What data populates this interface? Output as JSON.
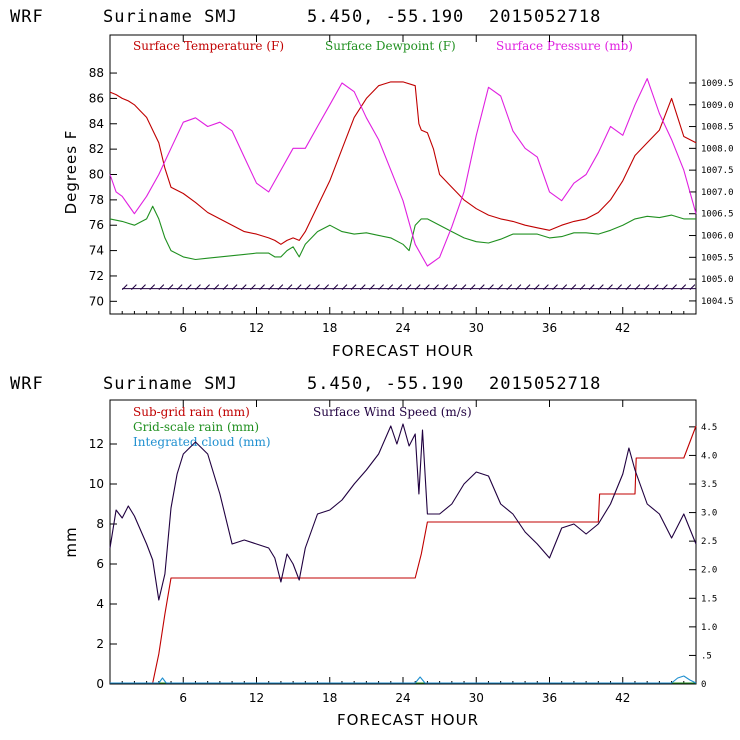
{
  "chart_data": [
    {
      "type": "line",
      "header": {
        "model": "WRF",
        "site": "Suriname SMJ",
        "coords": "5.450, -55.190",
        "run": "2015052718"
      },
      "xlabel": "FORECAST HOUR",
      "ylabel": "Degrees F",
      "xlim": [
        0,
        48
      ],
      "ylim": [
        69,
        91
      ],
      "xticks": [
        "6",
        "12",
        "18",
        "24",
        "30",
        "36",
        "42"
      ],
      "xtick_values": [
        6,
        12,
        18,
        24,
        30,
        36,
        42
      ],
      "yticks": [
        "70",
        "72",
        "74",
        "76",
        "78",
        "80",
        "82",
        "84",
        "86",
        "88"
      ],
      "ytick_values": [
        70,
        72,
        74,
        76,
        78,
        80,
        82,
        84,
        86,
        88
      ],
      "y2lim": [
        1004.2,
        1010.6
      ],
      "y2ticks": [
        "1004.5",
        "1005.0",
        "1005.5",
        "1006.0",
        "1006.5",
        "1007.0",
        "1007.5",
        "1008.0",
        "1008.5",
        "1009.0",
        "1009.5"
      ],
      "y2tick_values": [
        1004.5,
        1005.0,
        1005.5,
        1006.0,
        1006.5,
        1007.0,
        1007.5,
        1008.0,
        1008.5,
        1009.0,
        1009.5
      ],
      "colors": {
        "temperature": "#c00000",
        "dewpoint": "#209020",
        "pressure": "#e020e0",
        "wind": "#200040"
      },
      "legend": {
        "temperature": "Surface Temperature (F)",
        "dewpoint": "Surface Dewpoint (F)",
        "pressure": "Surface Pressure (mb)"
      },
      "series": [
        {
          "name": "Surface Temperature (F)",
          "axis": "left",
          "x": [
            0,
            0.5,
            1,
            1.5,
            2,
            2.5,
            3,
            3.5,
            4,
            4.5,
            5,
            6,
            7,
            8,
            9,
            10,
            11,
            12,
            13,
            13.5,
            14,
            14.5,
            15,
            15.5,
            16,
            17,
            18,
            19,
            20,
            21,
            22,
            23,
            24,
            25,
            25.3,
            25.5,
            26,
            26.5,
            27,
            28,
            29,
            30,
            31,
            32,
            33,
            34,
            35,
            36,
            37,
            38,
            39,
            40,
            41,
            42,
            43,
            44,
            45,
            46,
            47,
            48
          ],
          "y": [
            86.5,
            86.3,
            86.0,
            85.8,
            85.5,
            85.0,
            84.5,
            83.5,
            82.5,
            80.5,
            79.0,
            78.5,
            77.8,
            77.0,
            76.5,
            76.0,
            75.5,
            75.3,
            75.0,
            74.8,
            74.5,
            74.8,
            75.0,
            74.8,
            75.5,
            77.5,
            79.5,
            82.0,
            84.5,
            86.0,
            87.0,
            87.3,
            87.3,
            87.0,
            84.0,
            83.5,
            83.3,
            82.0,
            80.0,
            79.0,
            78.0,
            77.3,
            76.8,
            76.5,
            76.3,
            76.0,
            75.8,
            75.6,
            76.0,
            76.3,
            76.5,
            77.0,
            78.0,
            79.5,
            81.5,
            82.5,
            83.5,
            86.0,
            83.0,
            82.5
          ]
        },
        {
          "name": "Surface Dewpoint (F)",
          "axis": "left",
          "x": [
            0,
            1,
            2,
            3,
            3.5,
            4,
            4.5,
            5,
            6,
            7,
            8,
            9,
            10,
            11,
            12,
            13,
            13.5,
            14,
            14.5,
            15,
            15.5,
            16,
            17,
            18,
            19,
            20,
            21,
            22,
            23,
            24,
            24.5,
            25,
            25.5,
            26,
            27,
            28,
            29,
            30,
            31,
            32,
            33,
            34,
            35,
            36,
            37,
            38,
            39,
            40,
            41,
            42,
            43,
            44,
            45,
            46,
            47,
            48
          ],
          "y": [
            76.5,
            76.3,
            76.0,
            76.5,
            77.5,
            76.5,
            75.0,
            74.0,
            73.5,
            73.3,
            73.4,
            73.5,
            73.6,
            73.7,
            73.8,
            73.8,
            73.5,
            73.5,
            74.0,
            74.3,
            73.5,
            74.5,
            75.5,
            76.0,
            75.5,
            75.3,
            75.4,
            75.2,
            75.0,
            74.5,
            74.0,
            76.0,
            76.5,
            76.5,
            76.0,
            75.5,
            75.0,
            74.7,
            74.6,
            74.9,
            75.3,
            75.3,
            75.3,
            75.0,
            75.1,
            75.4,
            75.4,
            75.3,
            75.6,
            76.0,
            76.5,
            76.7,
            76.6,
            76.8,
            76.5,
            76.5
          ]
        },
        {
          "name": "Surface Pressure (mb)",
          "axis": "right",
          "x": [
            0,
            0.5,
            1,
            1.5,
            2,
            3,
            4,
            5,
            6,
            7,
            8,
            9,
            10,
            11,
            12,
            13,
            14,
            15,
            16,
            17,
            18,
            19,
            20,
            21,
            22,
            23,
            24,
            25,
            26,
            27,
            28,
            29,
            30,
            31,
            32,
            33,
            34,
            35,
            36,
            37,
            38,
            39,
            40,
            41,
            42,
            43,
            44,
            45,
            46,
            47,
            48
          ],
          "y": [
            1007.4,
            1007.0,
            1006.9,
            1006.7,
            1006.5,
            1006.9,
            1007.4,
            1008.0,
            1008.6,
            1008.7,
            1008.5,
            1008.6,
            1008.4,
            1007.8,
            1007.2,
            1007.0,
            1007.5,
            1008.0,
            1008.0,
            1008.5,
            1009.0,
            1009.5,
            1009.3,
            1008.7,
            1008.2,
            1007.5,
            1006.8,
            1005.8,
            1005.3,
            1005.5,
            1006.2,
            1007.0,
            1008.3,
            1009.4,
            1009.2,
            1008.4,
            1008.0,
            1007.8,
            1007.0,
            1006.8,
            1007.2,
            1007.4,
            1007.9,
            1008.5,
            1008.3,
            1009.0,
            1009.6,
            1008.8,
            1008.2,
            1007.5,
            1006.5
          ]
        },
        {
          "name": "Wind Barbs",
          "axis": "left",
          "level": 71.0,
          "x_from": 1,
          "x_to": 48,
          "x_step": 0.75
        }
      ]
    },
    {
      "type": "line",
      "header": {
        "model": "WRF",
        "site": "Suriname SMJ",
        "coords": "5.450, -55.190",
        "run": "2015052718"
      },
      "xlabel": "FORECAST HOUR",
      "ylabel": "mm",
      "xlim": [
        0,
        48
      ],
      "ylim": [
        0,
        14.2
      ],
      "xticks": [
        "6",
        "12",
        "18",
        "24",
        "30",
        "36",
        "42"
      ],
      "xtick_values": [
        6,
        12,
        18,
        24,
        30,
        36,
        42
      ],
      "yticks": [
        "0",
        "2",
        "4",
        "6",
        "8",
        "10",
        "12"
      ],
      "ytick_values": [
        0,
        2,
        4,
        6,
        8,
        10,
        12
      ],
      "y2lim": [
        0,
        4.97
      ],
      "y2ticks": [
        "0",
        ".5",
        "1.0",
        "1.5",
        "2.0",
        "2.5",
        "3.0",
        "3.5",
        "4.0",
        "4.5"
      ],
      "y2tick_values": [
        0,
        0.5,
        1.0,
        1.5,
        2.0,
        2.5,
        3.0,
        3.5,
        4.0,
        4.5
      ],
      "colors": {
        "subgrid": "#c00000",
        "gridscale": "#209020",
        "cloud": "#2090d0",
        "wind": "#200040"
      },
      "legend": {
        "subgrid": "Sub-grid rain (mm)",
        "gridscale": "Grid-scale rain (mm)",
        "cloud": "Integrated cloud (mm)",
        "wind": "Surface Wind Speed (m/s)"
      },
      "series": [
        {
          "name": "Sub-grid rain (mm)",
          "axis": "left",
          "x": [
            0,
            3.5,
            4,
            4.5,
            5,
            12,
            18,
            24,
            25,
            25.5,
            26,
            30,
            36,
            40,
            40.1,
            43,
            43.1,
            47,
            48
          ],
          "y": [
            0,
            0,
            1.5,
            3.5,
            5.3,
            5.3,
            5.3,
            5.3,
            5.3,
            6.5,
            8.1,
            8.1,
            8.1,
            8.1,
            9.5,
            9.5,
            11.3,
            11.3,
            12.9
          ]
        },
        {
          "name": "Grid-scale rain (mm)",
          "axis": "left",
          "x": [
            0,
            48
          ],
          "y": [
            0,
            0
          ]
        },
        {
          "name": "Integrated cloud (mm)",
          "axis": "left",
          "x": [
            0,
            4,
            4.3,
            4.6,
            5,
            25,
            25.4,
            25.8,
            26,
            46,
            46.5,
            47,
            47.5,
            48
          ],
          "y": [
            0.05,
            0.05,
            0.3,
            0.05,
            0.05,
            0.05,
            0.35,
            0.05,
            0.05,
            0.05,
            0.3,
            0.4,
            0.2,
            0.05
          ]
        },
        {
          "name": "Surface Wind Speed (m/s)",
          "axis": "left",
          "x": [
            0,
            0.5,
            1,
            1.5,
            2,
            3,
            3.5,
            4,
            4.5,
            5,
            5.5,
            6,
            7,
            8,
            9,
            10,
            11,
            12,
            13,
            13.5,
            14,
            14.5,
            15,
            15.5,
            16,
            17,
            18,
            19,
            20,
            21,
            22,
            23,
            23.5,
            24,
            24.5,
            25,
            25.3,
            25.6,
            26,
            27,
            28,
            29,
            30,
            31,
            32,
            33,
            34,
            35,
            36,
            37,
            38,
            39,
            40,
            41,
            42,
            42.5,
            43,
            44,
            45,
            46,
            47,
            48
          ],
          "y": [
            6.8,
            8.7,
            8.3,
            8.9,
            8.4,
            7.0,
            6.2,
            4.2,
            5.5,
            8.8,
            10.5,
            11.5,
            12.1,
            11.5,
            9.5,
            7.0,
            7.2,
            7.0,
            6.8,
            6.3,
            5.1,
            6.5,
            6.0,
            5.2,
            6.8,
            8.5,
            8.7,
            9.2,
            10.0,
            10.7,
            11.5,
            12.9,
            12.0,
            13.0,
            11.9,
            12.5,
            9.5,
            12.7,
            8.5,
            8.5,
            9.0,
            10.0,
            10.6,
            10.4,
            9.0,
            8.5,
            7.6,
            7.0,
            6.3,
            7.8,
            8.0,
            7.5,
            8.0,
            9.0,
            10.5,
            11.8,
            10.7,
            9.0,
            8.5,
            7.3,
            8.5,
            7.0
          ]
        }
      ]
    }
  ]
}
